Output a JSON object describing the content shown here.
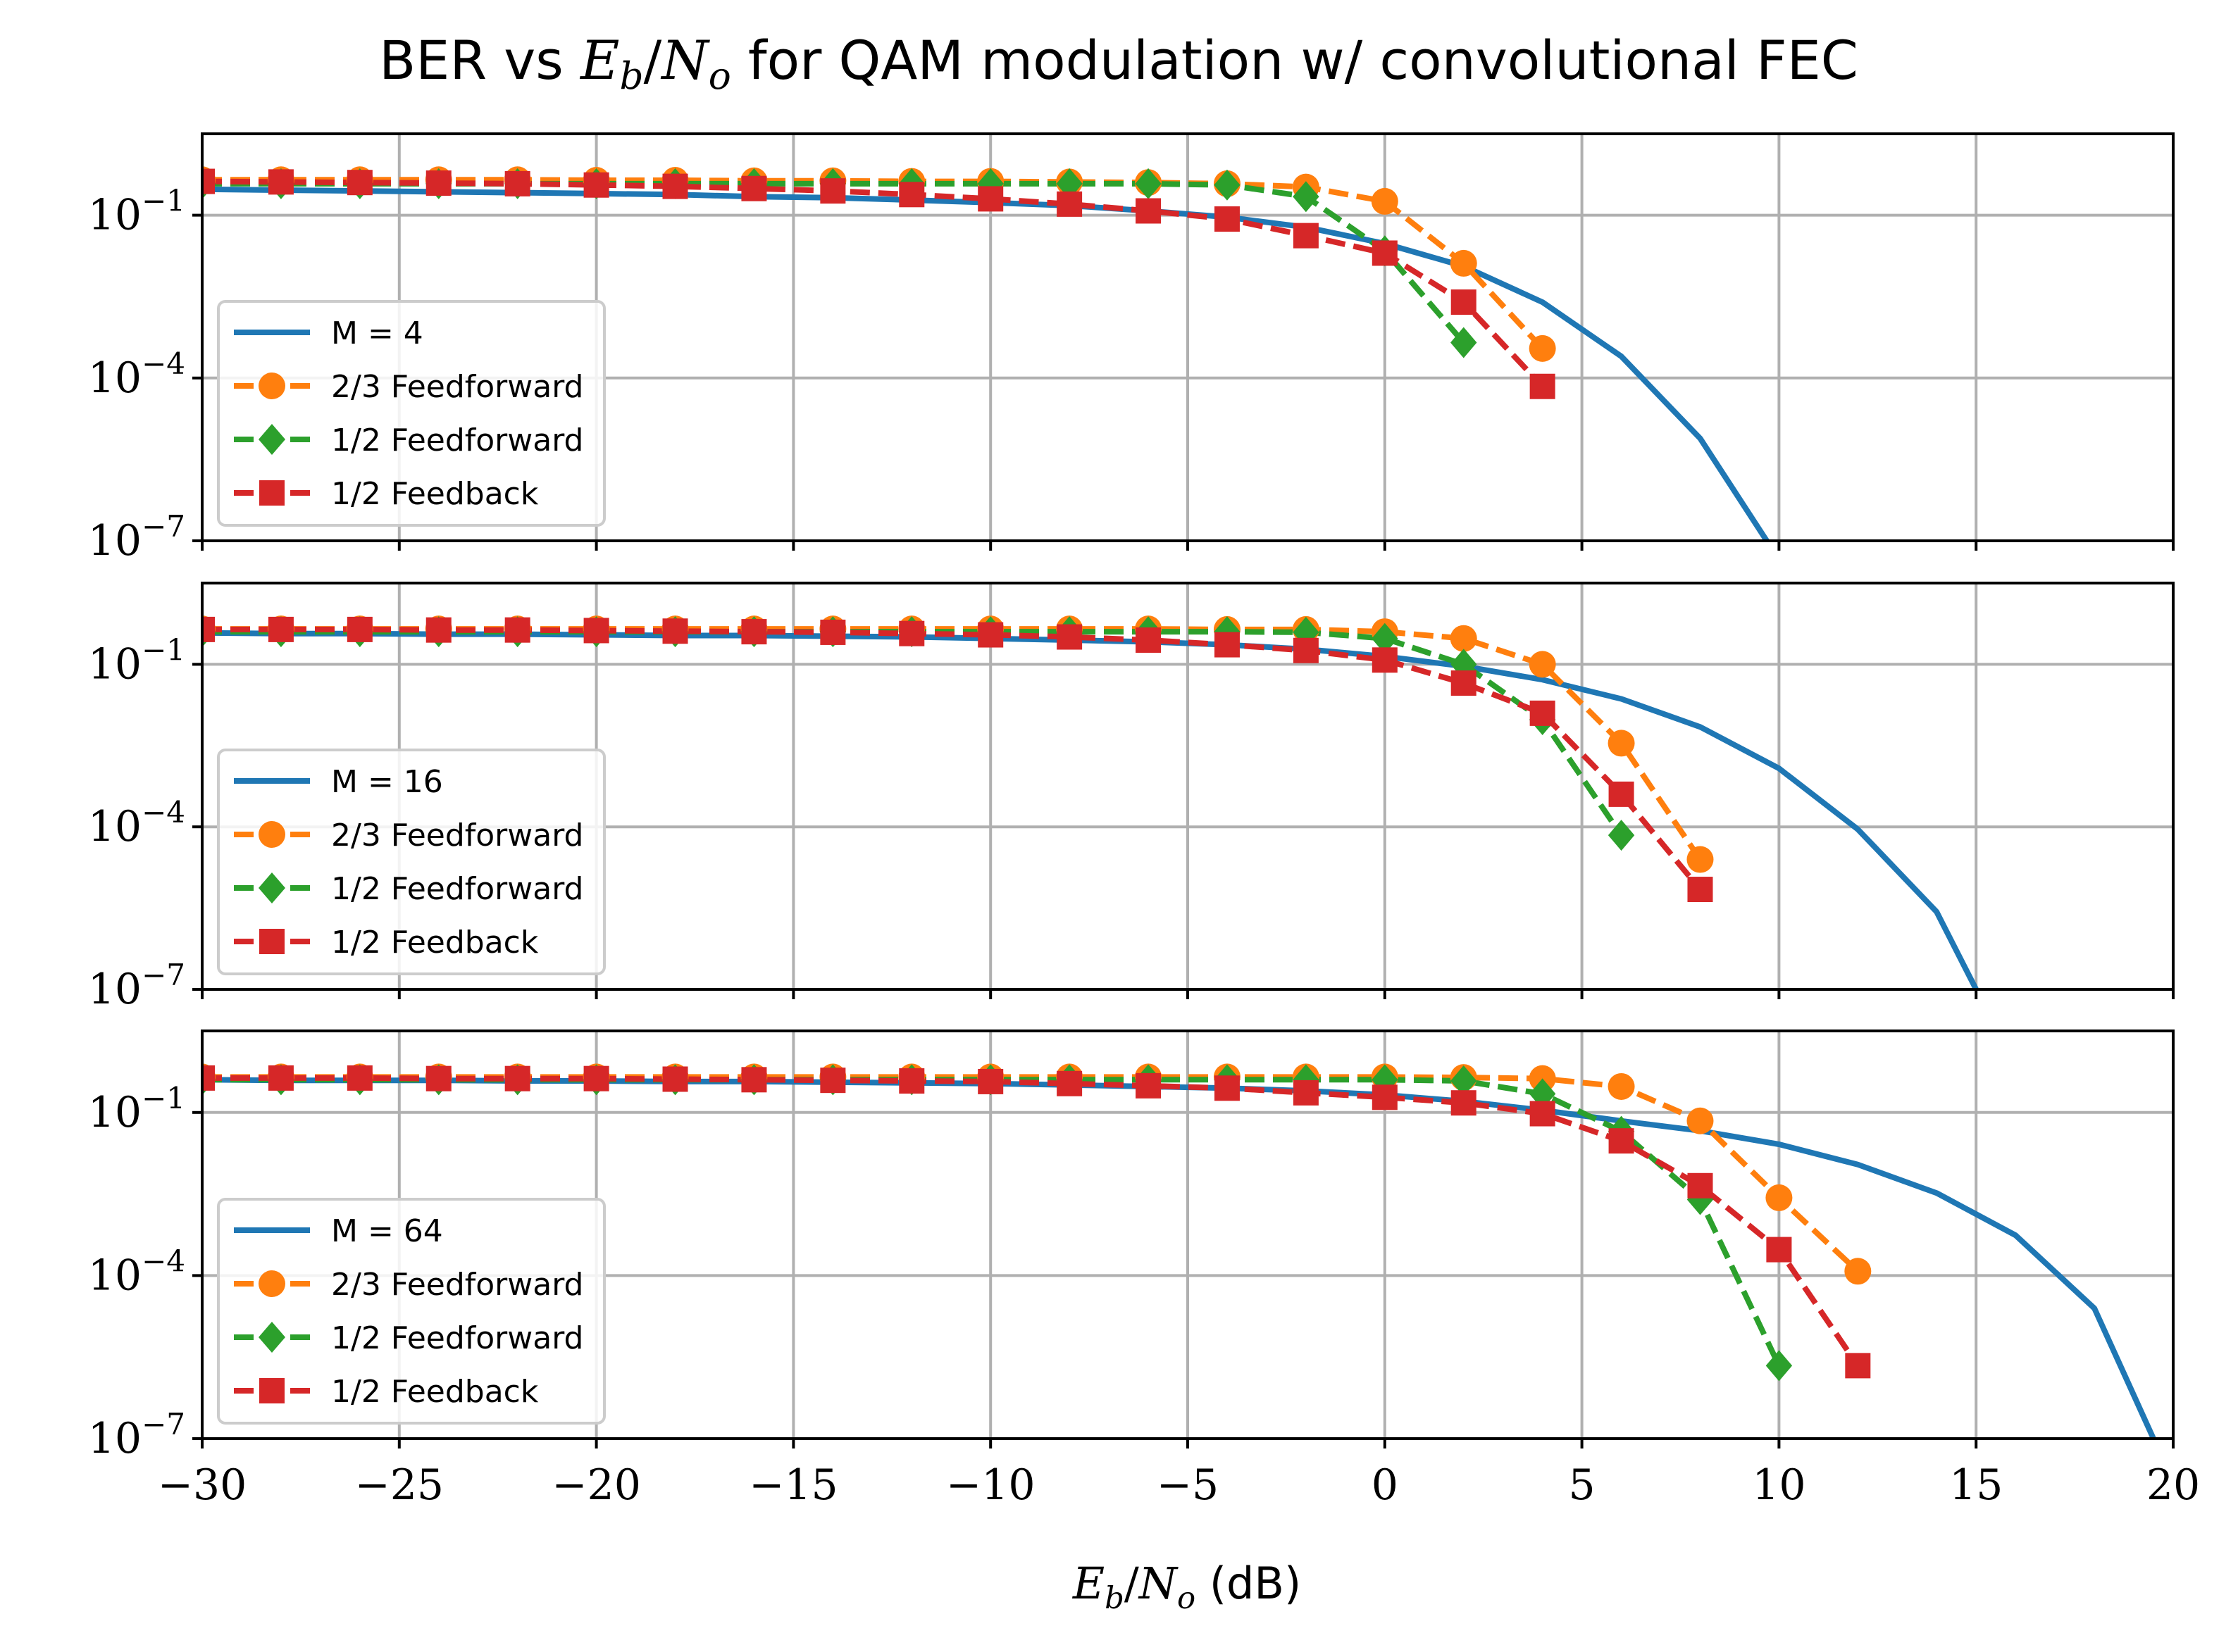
{
  "chart_data": {
    "type": "line",
    "title_parts": [
      "BER vs ",
      "E",
      "b",
      "/",
      "N",
      "o",
      " for QAM modulation w/ convolutional FEC"
    ],
    "xlabel_parts": [
      "E",
      "b",
      "/",
      "N",
      "o",
      " (dB)"
    ],
    "xlim": [
      -30,
      20
    ],
    "ylim_log10": [
      -7,
      0.5
    ],
    "y_scale": "log",
    "grid": true,
    "legend_placement": "lower-left",
    "x_ticks": [
      "−30",
      "−25",
      "−20",
      "−15",
      "−10",
      "−5",
      "0",
      "5",
      "10",
      "15",
      "20"
    ],
    "y_ticks": [
      {
        "exp": -1,
        "base": "10",
        "sup": "−1"
      },
      {
        "exp": -4,
        "base": "10",
        "sup": "−4"
      },
      {
        "exp": -7,
        "base": "10",
        "sup": "−7"
      }
    ],
    "series_styles": [
      {
        "color": "#1f77b4",
        "marker": "none",
        "dash": "solid"
      },
      {
        "color": "#ff7f0e",
        "marker": "circle",
        "dash": "dashed"
      },
      {
        "color": "#2ca02c",
        "marker": "diamond",
        "dash": "dashed"
      },
      {
        "color": "#d62728",
        "marker": "square",
        "dash": "dashed"
      }
    ],
    "panels": [
      {
        "series": [
          {
            "name": "M = 4",
            "x": [
              -30,
              -28,
              -26,
              -24,
              -22,
              -20,
              -18,
              -16,
              -14,
              -12,
              -10,
              -8,
              -6,
              -4,
              -2,
              0,
              2,
              4,
              6,
              8,
              10,
              12
            ],
            "y": [
              0.3,
              0.29,
              0.28,
              0.27,
              0.26,
              0.25,
              0.24,
              0.22,
              0.21,
              0.19,
              0.17,
              0.15,
              0.12,
              0.092,
              0.06,
              0.03,
              0.0115,
              0.0025,
              0.00025,
              7.7e-06,
              4.5e-08,
              1e-10
            ]
          },
          {
            "name": "2/3 Feedforward",
            "x": [
              -30,
              -28,
              -26,
              -24,
              -22,
              -20,
              -18,
              -16,
              -14,
              -12,
              -10,
              -8,
              -6,
              -4,
              -2,
              0,
              2,
              4
            ],
            "y": [
              0.45,
              0.45,
              0.45,
              0.45,
              0.45,
              0.44,
              0.44,
              0.43,
              0.43,
              0.42,
              0.42,
              0.41,
              0.4,
              0.38,
              0.33,
              0.18,
              0.013,
              0.00035
            ]
          },
          {
            "name": "1/2 Feedforward",
            "x": [
              -30,
              -28,
              -26,
              -24,
              -22,
              -20,
              -18,
              -16,
              -14,
              -12,
              -10,
              -8,
              -6,
              -4,
              -2,
              0,
              2
            ],
            "y": [
              0.38,
              0.38,
              0.38,
              0.38,
              0.38,
              0.38,
              0.38,
              0.38,
              0.38,
              0.38,
              0.38,
              0.38,
              0.38,
              0.36,
              0.22,
              0.022,
              0.00045
            ]
          },
          {
            "name": "1/2 Feedback",
            "x": [
              -30,
              -28,
              -26,
              -24,
              -22,
              -20,
              -18,
              -16,
              -14,
              -12,
              -10,
              -8,
              -6,
              -4,
              -2,
              0,
              2,
              4
            ],
            "y": [
              0.42,
              0.41,
              0.4,
              0.39,
              0.38,
              0.36,
              0.34,
              0.31,
              0.28,
              0.24,
              0.2,
              0.16,
              0.12,
              0.085,
              0.042,
              0.02,
              0.0025,
              7e-05
            ]
          }
        ]
      },
      {
        "series": [
          {
            "name": "M = 16",
            "x": [
              -30,
              -28,
              -26,
              -24,
              -22,
              -20,
              -18,
              -16,
              -14,
              -12,
              -10,
              -8,
              -6,
              -4,
              -2,
              0,
              2,
              4,
              6,
              8,
              10,
              12,
              14,
              15
            ],
            "y": [
              0.38,
              0.37,
              0.37,
              0.36,
              0.36,
              0.35,
              0.34,
              0.34,
              0.33,
              0.32,
              0.3,
              0.28,
              0.26,
              0.23,
              0.19,
              0.14,
              0.092,
              0.052,
              0.023,
              0.007,
              0.0012,
              9e-05,
              2.7e-06,
              1e-07
            ]
          },
          {
            "name": "2/3 Feedforward",
            "x": [
              -30,
              -28,
              -26,
              -24,
              -22,
              -20,
              -18,
              -16,
              -14,
              -12,
              -10,
              -8,
              -6,
              -4,
              -2,
              0,
              2,
              4,
              6,
              8
            ],
            "y": [
              0.45,
              0.45,
              0.45,
              0.45,
              0.45,
              0.45,
              0.45,
              0.45,
              0.45,
              0.45,
              0.45,
              0.45,
              0.45,
              0.44,
              0.44,
              0.4,
              0.3,
              0.1,
              0.0035,
              2.5e-05
            ]
          },
          {
            "name": "1/2 Feedforward",
            "x": [
              -30,
              -28,
              -26,
              -24,
              -22,
              -20,
              -18,
              -16,
              -14,
              -12,
              -10,
              -8,
              -6,
              -4,
              -2,
              0,
              2,
              4,
              6
            ],
            "y": [
              0.4,
              0.4,
              0.4,
              0.4,
              0.4,
              0.4,
              0.4,
              0.4,
              0.4,
              0.4,
              0.4,
              0.4,
              0.4,
              0.4,
              0.39,
              0.3,
              0.1,
              0.0095,
              7e-05
            ]
          },
          {
            "name": "1/2 Feedback",
            "x": [
              -30,
              -28,
              -26,
              -24,
              -22,
              -20,
              -18,
              -16,
              -14,
              -12,
              -10,
              -8,
              -6,
              -4,
              -2,
              0,
              2,
              4,
              6,
              8
            ],
            "y": [
              0.44,
              0.44,
              0.44,
              0.43,
              0.43,
              0.42,
              0.41,
              0.4,
              0.39,
              0.37,
              0.35,
              0.32,
              0.28,
              0.23,
              0.18,
              0.12,
              0.045,
              0.0125,
              0.0004,
              7e-06
            ]
          }
        ]
      },
      {
        "series": [
          {
            "name": "M = 64",
            "x": [
              -30,
              -28,
              -26,
              -24,
              -22,
              -20,
              -18,
              -16,
              -14,
              -12,
              -10,
              -8,
              -6,
              -4,
              -2,
              0,
              2,
              4,
              6,
              8,
              10,
              12,
              14,
              16,
              18,
              19.5
            ],
            "y": [
              0.4,
              0.39,
              0.39,
              0.39,
              0.38,
              0.38,
              0.37,
              0.37,
              0.36,
              0.35,
              0.34,
              0.32,
              0.3,
              0.28,
              0.25,
              0.21,
              0.16,
              0.11,
              0.07,
              0.046,
              0.026,
              0.011,
              0.0033,
              0.00055,
              2.5e-05,
              1e-07
            ]
          },
          {
            "name": "2/3 Feedforward",
            "x": [
              -30,
              -28,
              -26,
              -24,
              -22,
              -20,
              -18,
              -16,
              -14,
              -12,
              -10,
              -8,
              -6,
              -4,
              -2,
              0,
              2,
              4,
              6,
              8,
              10,
              12
            ],
            "y": [
              0.45,
              0.45,
              0.45,
              0.45,
              0.45,
              0.45,
              0.45,
              0.45,
              0.45,
              0.45,
              0.45,
              0.45,
              0.45,
              0.45,
              0.45,
              0.45,
              0.44,
              0.42,
              0.3,
              0.07,
              0.0027,
              0.00012
            ]
          },
          {
            "name": "1/2 Feedforward",
            "x": [
              -30,
              -28,
              -26,
              -24,
              -22,
              -20,
              -18,
              -16,
              -14,
              -12,
              -10,
              -8,
              -6,
              -4,
              -2,
              0,
              2,
              4,
              6,
              8,
              10
            ],
            "y": [
              0.4,
              0.4,
              0.4,
              0.4,
              0.4,
              0.4,
              0.4,
              0.4,
              0.4,
              0.4,
              0.4,
              0.4,
              0.4,
              0.4,
              0.4,
              0.4,
              0.38,
              0.22,
              0.045,
              0.0025,
              2.2e-06
            ]
          },
          {
            "name": "1/2 Feedback",
            "x": [
              -30,
              -28,
              -26,
              -24,
              -22,
              -20,
              -18,
              -16,
              -14,
              -12,
              -10,
              -8,
              -6,
              -4,
              -2,
              0,
              2,
              4,
              6,
              8,
              10,
              12
            ],
            "y": [
              0.43,
              0.43,
              0.43,
              0.42,
              0.42,
              0.42,
              0.41,
              0.4,
              0.39,
              0.38,
              0.37,
              0.34,
              0.31,
              0.28,
              0.23,
              0.19,
              0.15,
              0.095,
              0.03,
              0.0045,
              0.0003,
              2.2e-06
            ]
          }
        ]
      }
    ]
  }
}
